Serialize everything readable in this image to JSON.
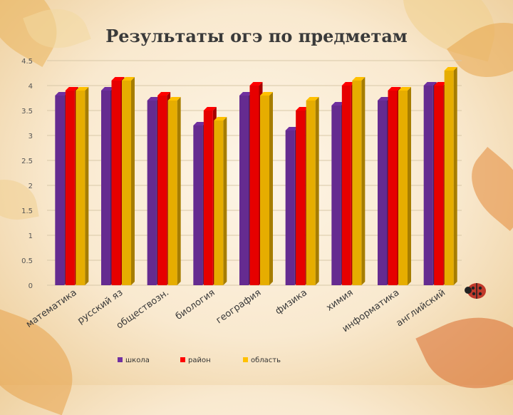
{
  "title": "Результаты огэ по предметам",
  "colors": {
    "школа": "#7030a0",
    "район": "#ff0000",
    "область": "#ffc000"
  },
  "chart_data": {
    "type": "bar",
    "title": "Результаты огэ по предметам",
    "categories": [
      "математика",
      "русский яз",
      "обществозн.",
      "биология",
      "география",
      "физика",
      "химия",
      "информатика",
      "английский"
    ],
    "series": [
      {
        "name": "школа",
        "values": [
          3.8,
          3.9,
          3.7,
          3.2,
          3.8,
          3.1,
          3.6,
          3.7,
          4.0
        ]
      },
      {
        "name": "район",
        "values": [
          3.9,
          4.1,
          3.8,
          3.5,
          4.0,
          3.5,
          4.0,
          3.9,
          4.0
        ]
      },
      {
        "name": "область",
        "values": [
          3.9,
          4.1,
          3.7,
          3.3,
          3.8,
          3.7,
          4.1,
          3.9,
          4.3
        ]
      }
    ],
    "ylim": [
      0,
      4.5
    ],
    "yticks": [
      0,
      0.5,
      1,
      1.5,
      2,
      2.5,
      3,
      3.5,
      4,
      4.5
    ],
    "grid": true,
    "legend": "bottom"
  }
}
